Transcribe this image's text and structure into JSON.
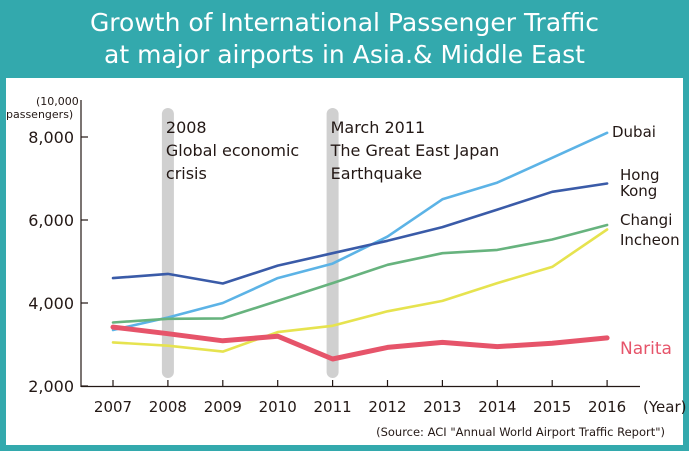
{
  "chart_data": {
    "type": "line",
    "title": [
      "Growth of International Passenger Traffic",
      "at major airports in Asia.& Middle East"
    ],
    "ylabel": [
      "(10,000",
      "passengers)"
    ],
    "xunit": "(Year)",
    "source": "(Source: ACI \"Annual World Airport Traffic Report\")",
    "ylim": [
      2000,
      8300
    ],
    "yticks": [
      2000,
      4000,
      6000,
      8000
    ],
    "ytick_labels": [
      "2,000",
      "4,000",
      "6,000",
      "8,000"
    ],
    "categories": [
      "2007",
      "2008",
      "2009",
      "2010",
      "2011",
      "2012",
      "2013",
      "2014",
      "2015",
      "2016"
    ],
    "annotations": [
      {
        "year": "2008",
        "lines": [
          "2008",
          "Global economic",
          "crisis"
        ]
      },
      {
        "year": "2011",
        "lines": [
          "March 2011",
          "The Great East Japan",
          "Earthquake"
        ]
      }
    ],
    "series": [
      {
        "name": "Dubai",
        "label_lines": [
          "Dubai"
        ],
        "color": "#5cb3e6",
        "label_color": "#231815",
        "values": [
          3350,
          3650,
          4000,
          4600,
          4950,
          5600,
          6500,
          6900,
          7500,
          8100
        ]
      },
      {
        "name": "Hong Kong",
        "label_lines": [
          "Hong",
          "Kong"
        ],
        "color": "#3a5ba8",
        "label_color": "#231815",
        "values": [
          4600,
          4700,
          4470,
          4900,
          5200,
          5500,
          5830,
          6250,
          6680,
          6880
        ]
      },
      {
        "name": "Changi",
        "label_lines": [
          "Changi"
        ],
        "color": "#67b37e",
        "label_color": "#231815",
        "values": [
          3530,
          3620,
          3630,
          4050,
          4480,
          4920,
          5200,
          5280,
          5530,
          5880
        ]
      },
      {
        "name": "Incheon",
        "label_lines": [
          "Incheon"
        ],
        "color": "#e6e34f",
        "label_color": "#231815",
        "values": [
          3050,
          2970,
          2830,
          3300,
          3450,
          3800,
          4050,
          4480,
          4870,
          5770
        ]
      },
      {
        "name": "Narita",
        "label_lines": [
          "Narita"
        ],
        "color": "#e6546a",
        "label_color": "#e6546a",
        "values": [
          3420,
          3260,
          3090,
          3200,
          2650,
          2930,
          3050,
          2950,
          3030,
          3160
        ]
      }
    ]
  }
}
